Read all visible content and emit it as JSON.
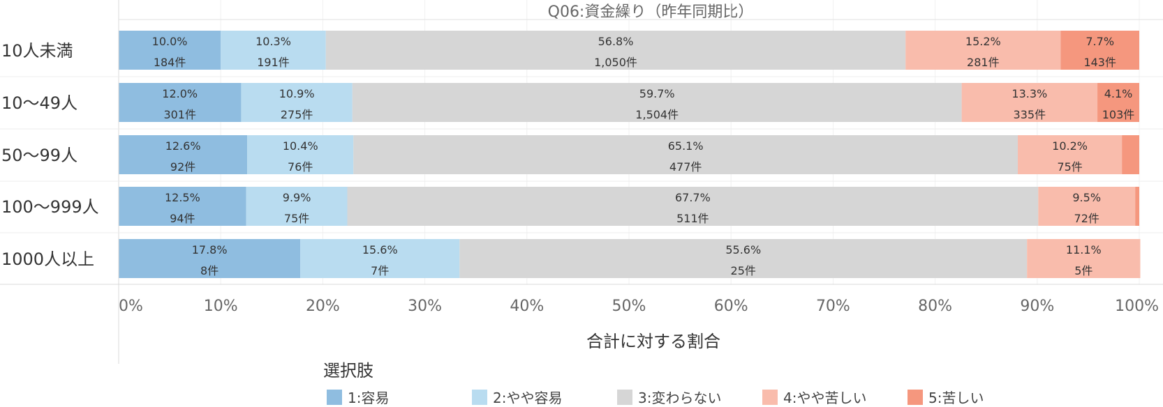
{
  "chart_data": {
    "type": "bar",
    "orientation": "horizontal",
    "stacked": true,
    "normalized": true,
    "title": "Q06:資金繰り（昨年同期比）",
    "xlabel": "合計に対する割合",
    "ylabel": "",
    "xlim": [
      0,
      100
    ],
    "x_ticks": [
      "0%",
      "10%",
      "20%",
      "30%",
      "40%",
      "50%",
      "60%",
      "70%",
      "80%",
      "90%",
      "100%"
    ],
    "categories": [
      "10人未満",
      "10〜49人",
      "50〜99人",
      "100〜999人",
      "1000人以上"
    ],
    "series": [
      {
        "name": "1:容易",
        "color": "#8fbde0",
        "values": [
          10.0,
          12.0,
          12.6,
          12.5,
          17.8
        ],
        "counts": [
          184,
          301,
          92,
          94,
          8
        ],
        "pct_labels": [
          "10.0%",
          "12.0%",
          "12.6%",
          "12.5%",
          "17.8%"
        ],
        "count_labels": [
          "184件",
          "301件",
          "92件",
          "94件",
          "8件"
        ]
      },
      {
        "name": "2:やや容易",
        "color": "#b9dcf0",
        "values": [
          10.3,
          10.9,
          10.4,
          9.9,
          15.6
        ],
        "counts": [
          191,
          275,
          76,
          75,
          7
        ],
        "pct_labels": [
          "10.3%",
          "10.9%",
          "10.4%",
          "9.9%",
          "15.6%"
        ],
        "count_labels": [
          "191件",
          "275件",
          "76件",
          "75件",
          "7件"
        ]
      },
      {
        "name": "3:変わらない",
        "color": "#d6d6d6",
        "values": [
          56.8,
          59.7,
          65.1,
          67.7,
          55.6
        ],
        "counts": [
          1050,
          1504,
          477,
          511,
          25
        ],
        "pct_labels": [
          "56.8%",
          "59.7%",
          "65.1%",
          "67.7%",
          "55.6%"
        ],
        "count_labels": [
          "1,050件",
          "1,504件",
          "477件",
          "511件",
          "25件"
        ]
      },
      {
        "name": "4:やや苦しい",
        "color": "#f9bcac",
        "values": [
          15.2,
          13.3,
          10.2,
          9.5,
          11.1
        ],
        "counts": [
          281,
          335,
          75,
          72,
          5
        ],
        "pct_labels": [
          "15.2%",
          "13.3%",
          "10.2%",
          "9.5%",
          "11.1%"
        ],
        "count_labels": [
          "281件",
          "335件",
          "75件",
          "72件",
          "5件"
        ]
      },
      {
        "name": "5:苦しい",
        "color": "#f5977e",
        "values": [
          7.7,
          4.1,
          1.7,
          0.4,
          0
        ],
        "counts": [
          143,
          103,
          null,
          null,
          null
        ],
        "pct_labels": [
          "7.7%",
          "4.1%",
          "",
          "",
          ""
        ],
        "count_labels": [
          "143件",
          "103件",
          "",
          "",
          ""
        ]
      }
    ],
    "legend": {
      "title": "選択肢",
      "position": "bottom"
    },
    "grid": true
  }
}
